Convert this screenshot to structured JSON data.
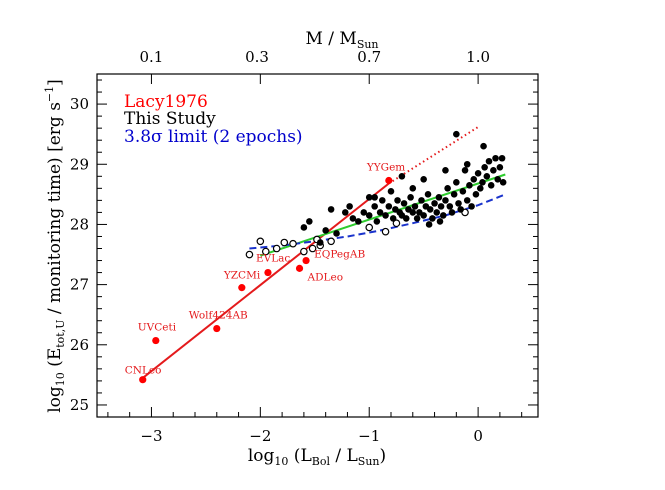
{
  "chart_data": {
    "type": "scatter",
    "xlabel": {
      "base": "log",
      "base_sub": "10",
      "paren_open": " (L",
      "sub1": "Bol",
      "mid": " / L",
      "sub2": "Sun",
      "close": ")"
    },
    "ylabel": {
      "base": "log",
      "base_sub": "10",
      "paren_open": " (E",
      "sub1": "tot,U",
      "rest": " / monitoring time)  [erg s",
      "sup": "−1",
      "close": "]"
    },
    "top_axis_label": {
      "main": "M / M",
      "sub": "Sun"
    },
    "xlim": [
      -3.5,
      0.55
    ],
    "ylim": [
      24.8,
      30.5
    ],
    "x_ticks": [
      -3,
      -2,
      -1,
      0
    ],
    "x_tick_labels": [
      "−3",
      "−2",
      "−1",
      "0"
    ],
    "y_ticks": [
      25,
      26,
      27,
      28,
      29,
      30
    ],
    "y_tick_labels": [
      "25",
      "26",
      "27",
      "28",
      "29",
      "30"
    ],
    "top_ticks": [
      {
        "x": -3.0,
        "label": "0.1"
      },
      {
        "x": -2.03,
        "label": "0.3"
      },
      {
        "x": -1.0,
        "label": "0.7"
      },
      {
        "x": 0.0,
        "label": "1.0"
      }
    ],
    "legend": [
      {
        "label": "Lacy1976",
        "color": "#ff0000"
      },
      {
        "label": "This Study",
        "color": "#000000"
      },
      {
        "label": "3.8σ limit (2 epochs)",
        "color": "#0000cc"
      }
    ],
    "series": [
      {
        "name": "Lacy1976",
        "color": "#ff0000",
        "points": [
          {
            "x": -3.08,
            "y": 25.42,
            "label": "CNLeo"
          },
          {
            "x": -2.96,
            "y": 26.07,
            "label": "UVCeti"
          },
          {
            "x": -2.4,
            "y": 26.27,
            "label": "Wolf424AB"
          },
          {
            "x": -2.17,
            "y": 26.95,
            "label": "YZCMi"
          },
          {
            "x": -1.93,
            "y": 27.2,
            "label": "EVLac"
          },
          {
            "x": -1.64,
            "y": 27.27,
            "label": "ADLeo"
          },
          {
            "x": -1.58,
            "y": 27.4,
            "label": "EQPegAB"
          },
          {
            "x": -0.82,
            "y": 28.73,
            "label": "YYGem"
          }
        ]
      },
      {
        "name": "This Study",
        "color": "#000000",
        "filled_points": [
          [
            -1.22,
            28.2
          ],
          [
            -1.15,
            28.1
          ],
          [
            -1.18,
            28.3
          ],
          [
            -1.1,
            28.05
          ],
          [
            -1.05,
            28.2
          ],
          [
            -1.0,
            28.15
          ],
          [
            -1.0,
            28.45
          ],
          [
            -0.95,
            28.3
          ],
          [
            -0.93,
            28.05
          ],
          [
            -0.9,
            28.2
          ],
          [
            -0.88,
            28.4
          ],
          [
            -0.85,
            28.15
          ],
          [
            -0.82,
            28.3
          ],
          [
            -0.8,
            28.55
          ],
          [
            -0.78,
            28.1
          ],
          [
            -0.76,
            28.25
          ],
          [
            -0.74,
            28.4
          ],
          [
            -0.72,
            28.2
          ],
          [
            -0.7,
            28.15
          ],
          [
            -0.68,
            28.35
          ],
          [
            -0.66,
            28.1
          ],
          [
            -0.64,
            28.25
          ],
          [
            -0.62,
            28.45
          ],
          [
            -0.6,
            28.2
          ],
          [
            -0.58,
            28.3
          ],
          [
            -0.56,
            28.1
          ],
          [
            -0.54,
            28.2
          ],
          [
            -0.52,
            28.4
          ],
          [
            -0.5,
            28.15
          ],
          [
            -0.48,
            28.3
          ],
          [
            -0.46,
            28.5
          ],
          [
            -0.44,
            28.25
          ],
          [
            -0.42,
            28.1
          ],
          [
            -0.4,
            28.35
          ],
          [
            -0.38,
            28.2
          ],
          [
            -0.36,
            28.45
          ],
          [
            -0.34,
            28.3
          ],
          [
            -0.32,
            28.15
          ],
          [
            -0.3,
            28.4
          ],
          [
            -0.28,
            28.6
          ],
          [
            -0.26,
            28.3
          ],
          [
            -0.24,
            28.2
          ],
          [
            -0.22,
            28.5
          ],
          [
            -0.2,
            28.7
          ],
          [
            -0.18,
            28.35
          ],
          [
            -0.16,
            28.25
          ],
          [
            -0.14,
            28.55
          ],
          [
            -0.12,
            28.9
          ],
          [
            -0.1,
            28.4
          ],
          [
            -0.08,
            28.65
          ],
          [
            -0.06,
            28.3
          ],
          [
            -0.04,
            28.75
          ],
          [
            -0.02,
            28.5
          ],
          [
            0.0,
            28.85
          ],
          [
            0.02,
            28.6
          ],
          [
            0.04,
            28.7
          ],
          [
            0.06,
            28.95
          ],
          [
            0.08,
            28.8
          ],
          [
            0.1,
            29.05
          ],
          [
            0.12,
            28.65
          ],
          [
            0.14,
            28.9
          ],
          [
            0.16,
            29.1
          ],
          [
            0.18,
            28.75
          ],
          [
            0.2,
            28.95
          ],
          [
            0.22,
            29.1
          ],
          [
            0.23,
            28.7
          ],
          [
            -1.45,
            27.7
          ],
          [
            -1.4,
            27.9
          ],
          [
            -1.3,
            27.85
          ],
          [
            -1.6,
            27.95
          ],
          [
            -1.35,
            28.25
          ],
          [
            -1.55,
            28.05
          ],
          [
            -0.2,
            29.5
          ],
          [
            -0.1,
            29.0
          ],
          [
            -0.3,
            28.9
          ],
          [
            -0.5,
            28.75
          ],
          [
            -0.6,
            28.6
          ],
          [
            -0.7,
            28.8
          ],
          [
            -0.95,
            28.45
          ],
          [
            0.05,
            29.3
          ],
          [
            -0.45,
            28.0
          ],
          [
            -0.35,
            28.05
          ]
        ],
        "open_points": [
          [
            -2.1,
            27.5
          ],
          [
            -2.0,
            27.72
          ],
          [
            -1.95,
            27.55
          ],
          [
            -1.85,
            27.6
          ],
          [
            -1.78,
            27.7
          ],
          [
            -1.7,
            27.68
          ],
          [
            -1.6,
            27.55
          ],
          [
            -1.52,
            27.6
          ],
          [
            -1.48,
            27.75
          ],
          [
            -1.45,
            27.65
          ],
          [
            -1.35,
            27.72
          ],
          [
            -1.0,
            27.95
          ],
          [
            -0.85,
            27.88
          ],
          [
            -0.75,
            28.02
          ],
          [
            -0.12,
            28.2
          ]
        ]
      }
    ],
    "fits": [
      {
        "name": "Lacy1976 fit",
        "color": "#e41a1c",
        "style": "solid",
        "x": [
          -3.1,
          -0.82
        ],
        "y": [
          25.42,
          28.68
        ]
      },
      {
        "name": "Lacy1976 fit (extrapolated)",
        "color": "#e41a1c",
        "style": "dotted",
        "x": [
          -0.82,
          0.0
        ],
        "y": [
          28.68,
          29.62
        ]
      },
      {
        "name": "This Study fit",
        "color": "#2ecc2e",
        "style": "solid",
        "x": [
          -2.0,
          0.25
        ],
        "y": [
          27.48,
          28.83
        ]
      },
      {
        "name": "3.8σ limit (2 epochs)",
        "color": "#1a33cc",
        "style": "dashed",
        "x": [
          -2.1,
          -1.8,
          -1.5,
          -1.2,
          -0.9,
          -0.6,
          -0.3,
          0.0,
          0.25
        ],
        "y": [
          27.6,
          27.65,
          27.72,
          27.8,
          27.9,
          28.02,
          28.15,
          28.32,
          28.5
        ]
      }
    ]
  }
}
